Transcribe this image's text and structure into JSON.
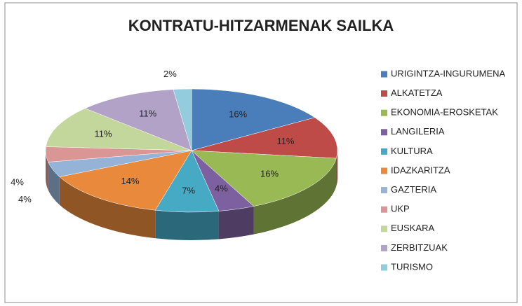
{
  "chart_data": {
    "type": "pie",
    "title": "KONTRATU-HITZARMENAK SAILKA",
    "categories": [
      "URIGINTZA-INGURUMENA",
      "ALKATETZA",
      "EKONOMIA-EROSKETAK",
      "LANGILERIA",
      "KULTURA",
      "IDAZKARITZA",
      "GAZTERIA",
      "UKP",
      "EUSKARA",
      "ZERBITZUAK",
      "TURISMO"
    ],
    "values": [
      16,
      11,
      16,
      4,
      7,
      14,
      4,
      4,
      11,
      11,
      2
    ],
    "value_labels": [
      "16%",
      "11%",
      "16%",
      "4%",
      "7%",
      "14%",
      "4%",
      "4%",
      "11%",
      "11%",
      "2%"
    ],
    "colors": [
      "#4a7ebb",
      "#be4b48",
      "#98b954",
      "#7d60a0",
      "#46aac5",
      "#e8893b",
      "#95b3d7",
      "#d99694",
      "#c3d69b",
      "#b3a2c7",
      "#93cddd"
    ],
    "legend": "right"
  }
}
